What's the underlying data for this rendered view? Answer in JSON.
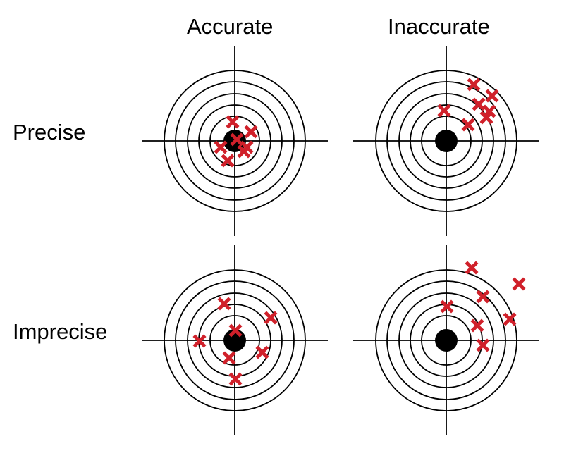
{
  "labels": {
    "columns": [
      "Accurate",
      "Inaccurate"
    ],
    "rows": [
      "Precise",
      "Imprecise"
    ]
  },
  "colors": {
    "rings": "#000000",
    "bullseye": "#000000",
    "marker": "#d0202a"
  },
  "icons": {
    "marker": "x-mark-icon",
    "target": "target-icon"
  },
  "targets": [
    {
      "id": "accurate-precise",
      "hits": [
        [
          -3,
          -27
        ],
        [
          23,
          -13
        ],
        [
          3,
          -2
        ],
        [
          -20,
          9
        ],
        [
          17,
          9
        ],
        [
          13,
          15
        ],
        [
          -10,
          28
        ]
      ]
    },
    {
      "id": "inaccurate-precise",
      "hits": [
        [
          39,
          -80
        ],
        [
          65,
          -64
        ],
        [
          46,
          -52
        ],
        [
          -3,
          -43
        ],
        [
          61,
          -42
        ],
        [
          57,
          -33
        ],
        [
          31,
          -23
        ]
      ]
    },
    {
      "id": "accurate-imprecise",
      "hits": [
        [
          -15,
          -52
        ],
        [
          51,
          -32
        ],
        [
          1,
          -14
        ],
        [
          -50,
          1
        ],
        [
          39,
          17
        ],
        [
          -8,
          25
        ],
        [
          1,
          55
        ]
      ]
    },
    {
      "id": "inaccurate-imprecise",
      "hits": [
        [
          36,
          -103
        ],
        [
          103,
          -80
        ],
        [
          52,
          -62
        ],
        [
          1,
          -48
        ],
        [
          44,
          -21
        ],
        [
          90,
          -30
        ],
        [
          52,
          7
        ]
      ]
    }
  ]
}
